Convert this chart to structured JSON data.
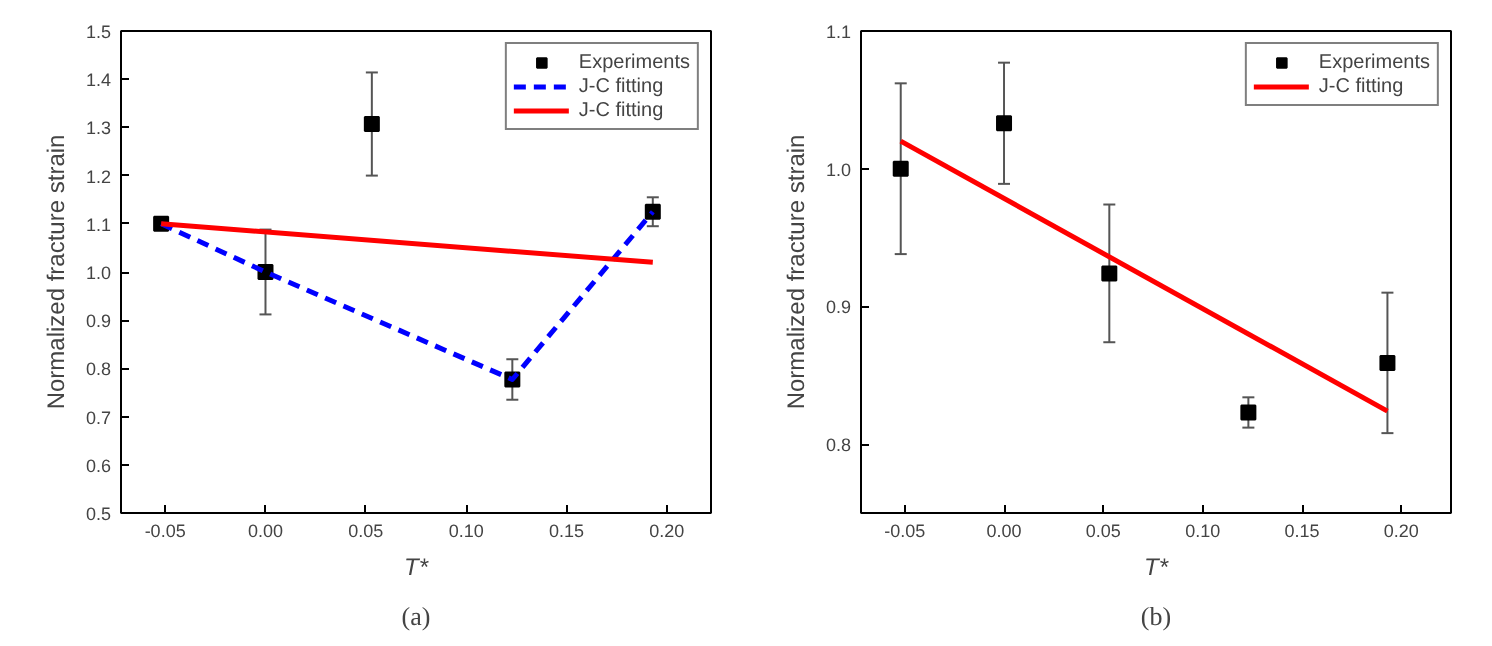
{
  "chart_data": [
    {
      "type": "scatter",
      "xlabel": "T*",
      "ylabel": "Normalized fracture strain",
      "annotations": [
        "(a)"
      ],
      "xlim": [
        -0.072,
        0.222
      ],
      "ylim": [
        0.5,
        1.5
      ],
      "xticks": [
        {
          "value": -0.05,
          "label": "-0.05"
        },
        {
          "value": 0,
          "label": "0.00"
        },
        {
          "value": 0.05,
          "label": "0.05"
        },
        {
          "value": 0.1,
          "label": "0.10"
        },
        {
          "value": 0.15,
          "label": "0.15"
        },
        {
          "value": 0.2,
          "label": "0.20"
        }
      ],
      "yticks": [
        0.5,
        0.6,
        0.7,
        0.8,
        0.9,
        {
          "value": 1.0,
          "label": "1.0"
        },
        1.1,
        1.2,
        1.3,
        1.4,
        1.5
      ],
      "grid": false,
      "legend": "top right",
      "series": [
        {
          "name": "Experiments",
          "type": "scatter",
          "marker": "square",
          "color": "#000000",
          "x": [
            -0.052,
            0,
            0.053,
            0.123,
            0.193
          ],
          "values": [
            1.1,
            1.0,
            1.307,
            0.777,
            1.125
          ],
          "errors": [
            null,
            0.088,
            0.107,
            0.042,
            0.03
          ]
        },
        {
          "name": "J-C fitting",
          "type": "line",
          "line_style": "dashed",
          "color": "#0000ff",
          "x": [
            -0.052,
            0,
            0.123,
            0.193
          ],
          "values": [
            1.1,
            1.0,
            0.777,
            1.125
          ]
        },
        {
          "name": "J-C fitting",
          "type": "line",
          "line_style": "solid",
          "color": "#ff0000",
          "x": [
            -0.052,
            0.193
          ],
          "values": [
            1.1,
            1.02
          ]
        }
      ]
    },
    {
      "type": "scatter",
      "xlabel": "T*",
      "ylabel": "Normalized fracture strain",
      "annotations": [
        "(b)"
      ],
      "xlim": [
        -0.072,
        0.225
      ],
      "ylim": [
        0.75,
        1.1
      ],
      "xticks": [
        {
          "value": -0.05,
          "label": "-0.05"
        },
        {
          "value": 0,
          "label": "0.00"
        },
        {
          "value": 0.05,
          "label": "0.05"
        },
        {
          "value": 0.1,
          "label": "0.10"
        },
        {
          "value": 0.15,
          "label": "0.15"
        },
        {
          "value": 0.2,
          "label": "0.20"
        }
      ],
      "yticks": [
        0.8,
        0.9,
        {
          "value": 1.0,
          "label": "1.0"
        },
        1.1
      ],
      "grid": false,
      "legend": "top right",
      "series": [
        {
          "name": "Experiments",
          "type": "scatter",
          "marker": "square",
          "color": "#000000",
          "x": [
            -0.052,
            0,
            0.053,
            0.123,
            0.193
          ],
          "values": [
            1.0,
            1.033,
            0.924,
            0.823,
            0.859
          ],
          "errors": [
            0.062,
            0.044,
            0.05,
            0.011,
            0.051
          ]
        },
        {
          "name": "J-C fitting",
          "type": "line",
          "line_style": "solid",
          "color": "#ff0000",
          "x": [
            -0.052,
            0.193
          ],
          "values": [
            1.02,
            0.824
          ]
        }
      ]
    }
  ]
}
